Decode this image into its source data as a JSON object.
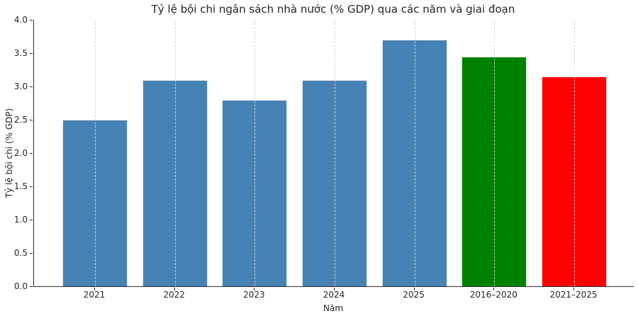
{
  "chart_data": {
    "type": "bar",
    "title": "Tỷ lệ bội chi ngân sách nhà nước (% GDP) qua các năm và giai đoạn",
    "xlabel": "Năm",
    "ylabel": "Tỷ lệ bội chi (% GDP)",
    "categories": [
      "2021",
      "2022",
      "2023",
      "2024",
      "2025",
      "2016–2020",
      "2021–2025"
    ],
    "values": [
      2.5,
      3.1,
      2.8,
      3.1,
      3.7,
      3.45,
      3.15
    ],
    "bar_colors": [
      "#4682b4",
      "#4682b4",
      "#4682b4",
      "#4682b4",
      "#4682b4",
      "#008000",
      "#ff0000"
    ],
    "ylim": [
      0.0,
      4.0
    ],
    "ytick_labels": [
      "0.0",
      "0.5",
      "1.0",
      "1.5",
      "2.0",
      "2.5",
      "3.0",
      "3.5",
      "4.0"
    ],
    "grid": "vertical-dashed",
    "legend_position": "none",
    "spines": [
      "left",
      "bottom"
    ],
    "background_color": "#ffffff",
    "text_color": "#262626"
  }
}
